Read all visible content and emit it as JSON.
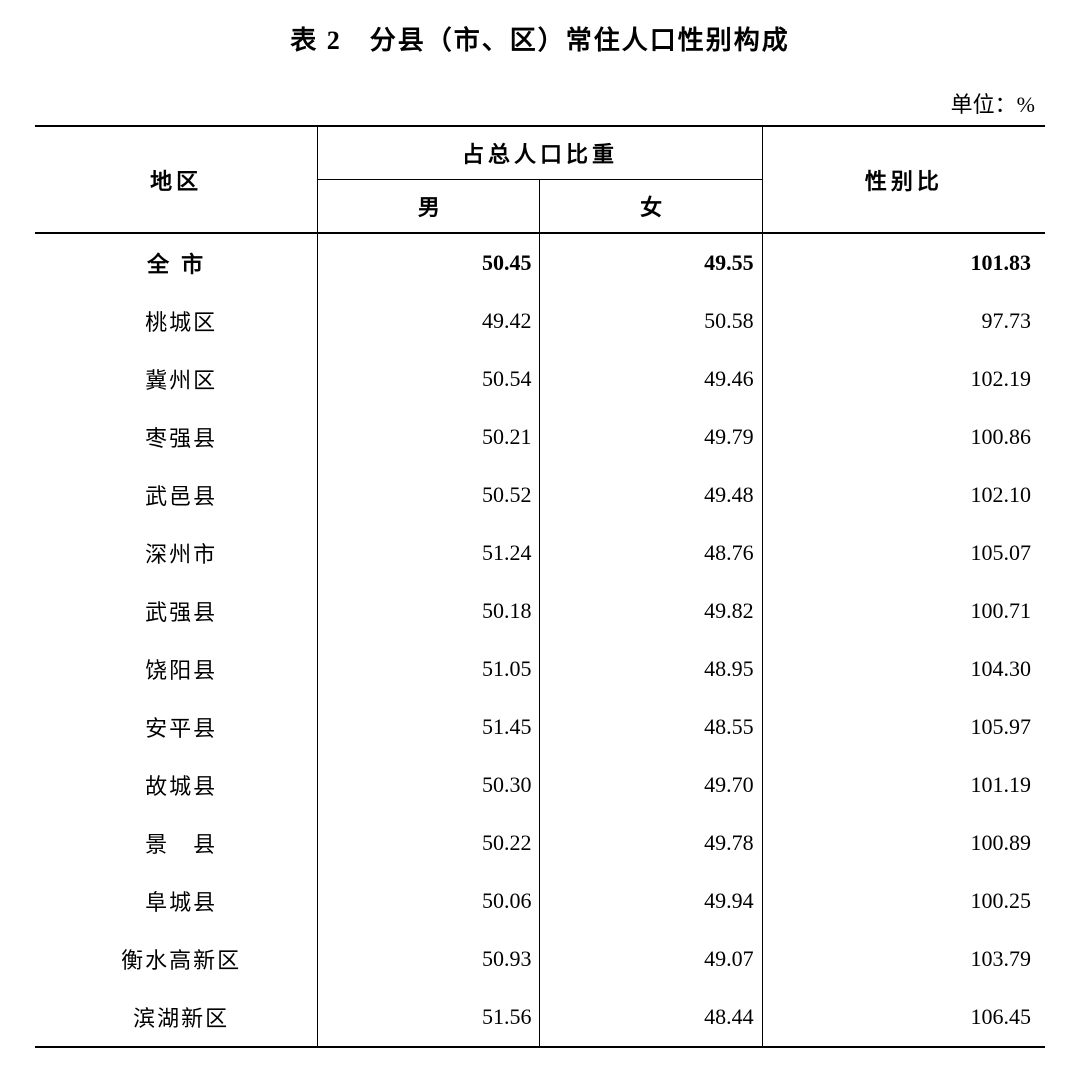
{
  "title": "表 2　分县（市、区）常住人口性别构成",
  "unit": "单位：%",
  "table": {
    "type": "table",
    "background_color": "#ffffff",
    "text_color": "#000000",
    "border_color": "#000000",
    "font_family": "SimSun",
    "body_fontsize": 22,
    "title_fontsize": 26,
    "column_widths_pct": [
      28,
      22,
      22,
      28
    ],
    "header": {
      "region": "地区",
      "proportion": "占总人口比重",
      "male": "男",
      "female": "女",
      "ratio": "性别比"
    },
    "total_row": {
      "region": "全市",
      "male": "50.45",
      "female": "49.55",
      "ratio": "101.83",
      "bold": true
    },
    "rows": [
      {
        "region": "桃城区",
        "male": "49.42",
        "female": "50.58",
        "ratio": "97.73"
      },
      {
        "region": "冀州区",
        "male": "50.54",
        "female": "49.46",
        "ratio": "102.19"
      },
      {
        "region": "枣强县",
        "male": "50.21",
        "female": "49.79",
        "ratio": "100.86"
      },
      {
        "region": "武邑县",
        "male": "50.52",
        "female": "49.48",
        "ratio": "102.10"
      },
      {
        "region": "深州市",
        "male": "51.24",
        "female": "48.76",
        "ratio": "105.07"
      },
      {
        "region": "武强县",
        "male": "50.18",
        "female": "49.82",
        "ratio": "100.71"
      },
      {
        "region": "饶阳县",
        "male": "51.05",
        "female": "48.95",
        "ratio": "104.30"
      },
      {
        "region": "安平县",
        "male": "51.45",
        "female": "48.55",
        "ratio": "105.97"
      },
      {
        "region": "故城县",
        "male": "50.30",
        "female": "49.70",
        "ratio": "101.19"
      },
      {
        "region": "景　县",
        "male": "50.22",
        "female": "49.78",
        "ratio": "100.89"
      },
      {
        "region": "阜城县",
        "male": "50.06",
        "female": "49.94",
        "ratio": "100.25"
      },
      {
        "region": "衡水高新区",
        "male": "50.93",
        "female": "49.07",
        "ratio": "103.79"
      },
      {
        "region": "滨湖新区",
        "male": "51.56",
        "female": "48.44",
        "ratio": "106.45"
      }
    ]
  }
}
